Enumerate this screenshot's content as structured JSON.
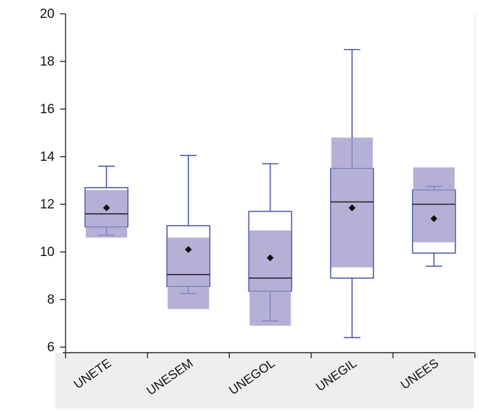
{
  "chart_data": {
    "type": "boxplot",
    "title": "",
    "xlabel": "",
    "ylabel": "",
    "ylim": [
      6,
      20
    ],
    "yticks": [
      6,
      8,
      10,
      12,
      14,
      16,
      18,
      20
    ],
    "ytick_labels": [
      "6",
      "8",
      "10",
      "12",
      "14",
      "16",
      "18",
      "20"
    ],
    "categories": [
      "UNETE",
      "UNESEM",
      "UNEGOL",
      "UNEGIL",
      "UNEES"
    ],
    "boxes": [
      {
        "category": "UNETE",
        "whisker_low": 10.7,
        "q1": 11.05,
        "median": 11.6,
        "q3": 12.7,
        "whisker_high": 13.6,
        "mean": 11.85,
        "mean_ci": [
          10.6,
          12.6
        ]
      },
      {
        "category": "UNESEM",
        "whisker_low": 8.25,
        "q1": 8.55,
        "median": 9.05,
        "q3": 11.1,
        "whisker_high": 14.05,
        "mean": 10.1,
        "mean_ci": [
          7.6,
          10.6
        ]
      },
      {
        "category": "UNEGOL",
        "whisker_low": 7.1,
        "q1": 8.35,
        "median": 8.9,
        "q3": 11.7,
        "whisker_high": 13.7,
        "mean": 9.75,
        "mean_ci": [
          6.9,
          10.9
        ]
      },
      {
        "category": "UNEGIL",
        "whisker_low": 6.4,
        "q1": 8.9,
        "median": 12.1,
        "q3": 13.5,
        "whisker_high": 18.5,
        "mean": 11.85,
        "mean_ci": [
          9.35,
          14.8
        ]
      },
      {
        "category": "UNEES",
        "whisker_low": 9.4,
        "q1": 9.95,
        "median": 12.0,
        "q3": 12.6,
        "whisker_high": 12.75,
        "mean": 11.4,
        "mean_ci": [
          10.4,
          13.55
        ]
      }
    ],
    "grid": false,
    "legend": "none",
    "colors": {
      "box_line": "#4a56a8",
      "ci_fill": "#9c96c8",
      "median_line": "#222222",
      "mean_marker": "#111111",
      "axis": "#222222",
      "bottom_band": "#eeeeee"
    }
  }
}
